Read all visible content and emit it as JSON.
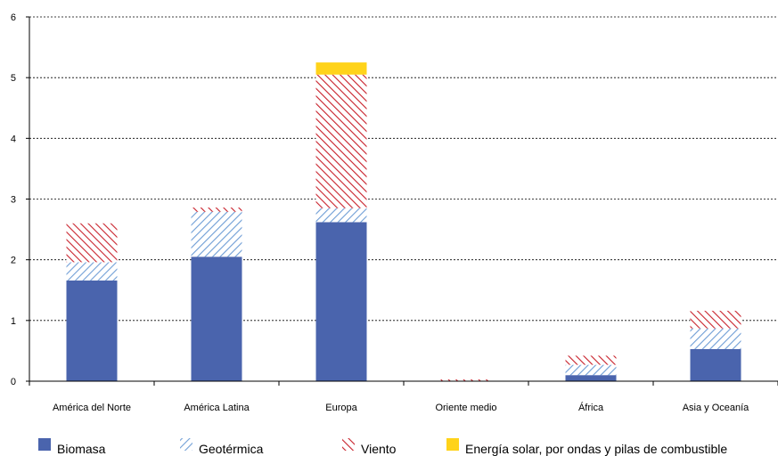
{
  "chart_data": {
    "type": "bar",
    "stacked": true,
    "categories": [
      "América del Norte",
      "América Latina",
      "Europa",
      "Oriente medio",
      "África",
      "Asia y Oceanía"
    ],
    "series": [
      {
        "name": "Biomasa",
        "values": [
          1.66,
          2.05,
          2.62,
          0.0,
          0.1,
          0.53
        ],
        "color": "#4a64ad",
        "fill": "solid"
      },
      {
        "name": "Geotérmica",
        "values": [
          0.3,
          0.74,
          0.23,
          0.0,
          0.17,
          0.34
        ],
        "color": "#6f9ed6",
        "fill": "hatch"
      },
      {
        "name": "Viento",
        "values": [
          0.64,
          0.07,
          2.2,
          0.03,
          0.15,
          0.29
        ],
        "color": "#c8202a",
        "fill": "hatch"
      },
      {
        "name": "Energía solar,  por ondas y pilas de combustible",
        "values": [
          0.0,
          0.0,
          0.2,
          0.0,
          0.0,
          0.0
        ],
        "color": "#ffd31a",
        "fill": "solid"
      }
    ],
    "yticks": [
      "0",
      "1",
      "2",
      "3",
      "4",
      "5",
      "6"
    ],
    "ylim": [
      0,
      6
    ],
    "grid": true,
    "grid_style": "dotted",
    "legend_position": "bottom"
  }
}
